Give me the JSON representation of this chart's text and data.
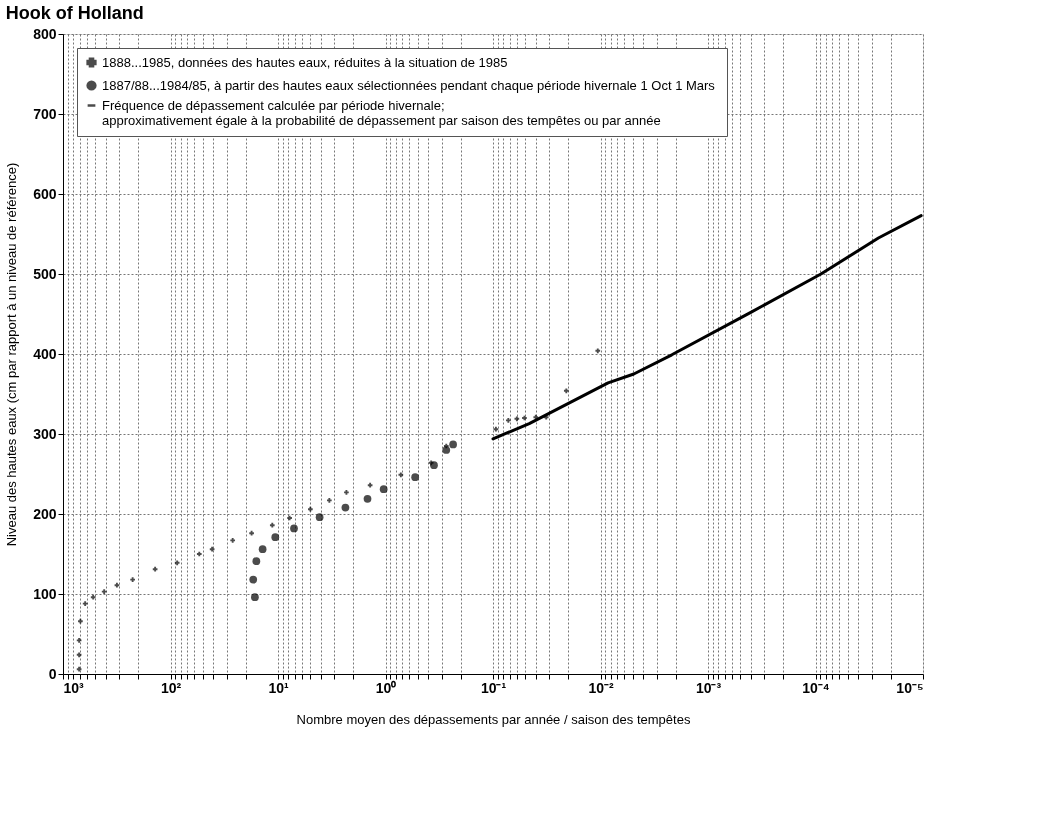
{
  "chart_data": {
    "type": "scatter",
    "title": "Hook of Holland",
    "xlabel": "Nombre moyen des dépassements par année / saison des tempêtes",
    "ylabel": "Niveau des hautes eaux (cm par rapport à un niveau de référence)",
    "log": "x",
    "grid": true,
    "legend": "top",
    "xlim": [
      1000,
      1e-05
    ],
    "ylim": [
      0,
      800
    ],
    "xticks": [
      {
        "value": 1000,
        "label": "10³"
      },
      {
        "value": 100,
        "label": "10²"
      },
      {
        "value": 10,
        "label": "10¹"
      },
      {
        "value": 1,
        "label": "10⁰"
      },
      {
        "value": 0.1,
        "label": "10⁻¹"
      },
      {
        "value": 0.01,
        "label": "10⁻²"
      },
      {
        "value": 0.001,
        "label": "10⁻³"
      },
      {
        "value": 0.0001,
        "label": "10⁻⁴"
      },
      {
        "value": 1e-05,
        "label": "10⁻⁵"
      }
    ],
    "yticks": [
      0,
      100,
      200,
      300,
      400,
      500,
      600,
      700,
      800
    ],
    "series": [
      {
        "name": "1888...1985, données des hautes eaux, réduites à la situation de 1985",
        "marker": "cross",
        "color": "#000000",
        "x": [
          708,
          708,
          708,
          689,
          622,
          524,
          414,
          315,
          225,
          139,
          86.7,
          54,
          41,
          26.4,
          17.6,
          11.3,
          7.8,
          5.0,
          3.33,
          2.31,
          1.39,
          0.72,
          0.376,
          0.272,
          0.094,
          0.072,
          0.06,
          0.051,
          0.04,
          0.032,
          0.0208,
          0.0106
        ],
        "values": [
          6,
          24,
          42,
          66,
          88,
          96,
          103,
          111,
          118,
          131,
          139,
          150,
          156,
          167,
          176,
          186,
          195,
          206,
          217,
          227,
          236,
          249,
          264,
          285,
          306,
          317,
          319,
          320,
          321,
          321,
          354,
          404
        ]
      },
      {
        "name": "1887/88...1984/85, à partir des hautes eaux sélectionnées pendant chaque période hivernale 1 Oct  1 Mars",
        "marker": "circle",
        "color": "#000000",
        "x": [
          16.4,
          17.0,
          15.9,
          13.9,
          10.6,
          7.1,
          4.1,
          2.36,
          1.47,
          1.04,
          0.53,
          0.354,
          0.272,
          0.235
        ],
        "values": [
          96,
          118,
          141,
          156,
          171,
          182,
          196,
          208,
          219,
          231,
          246,
          261,
          280,
          287
        ]
      },
      {
        "name": "Fréquence de dépassement calculée par période hivernale;\napproximativement égale à la probabilité de dépassement par saison des tempêtes ou par année",
        "type": "line",
        "line_style": "solid",
        "color": "#000000",
        "x": [
          0.1,
          0.046,
          0.0085,
          0.0049,
          0.00217,
          0.0004,
          8.9e-05,
          2.6e-05,
          1.04e-05
        ],
        "values": [
          294,
          313,
          364,
          375,
          399,
          452,
          500,
          545,
          573
        ]
      }
    ]
  }
}
